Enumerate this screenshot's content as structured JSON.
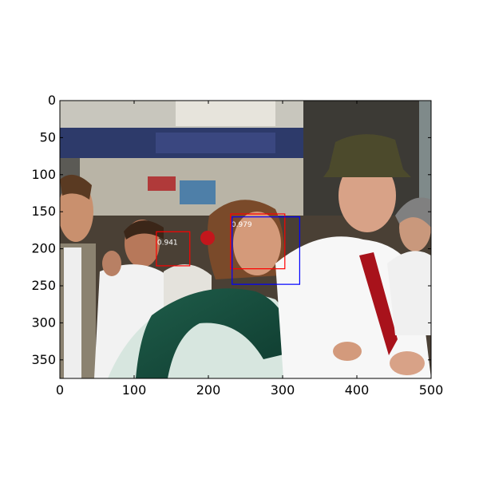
{
  "figure": {
    "description_colors": {
      "background": "#ffffff",
      "axes_frame": "#000000"
    },
    "x_axis": {
      "range": [
        0,
        500
      ],
      "tick_values": [
        0,
        100,
        200,
        300,
        400,
        500
      ],
      "tick_labels": [
        "0",
        "100",
        "200",
        "300",
        "400",
        "500"
      ]
    },
    "y_axis": {
      "range": [
        0,
        375
      ],
      "inverted": true,
      "tick_values": [
        0,
        50,
        100,
        150,
        200,
        250,
        300,
        350
      ],
      "tick_labels": [
        "0",
        "50",
        "100",
        "150",
        "200",
        "250",
        "300",
        "350"
      ]
    },
    "detections": [
      {
        "label": "0.941",
        "color": "#ff0000",
        "x1": 130,
        "y1": 177,
        "x2": 175,
        "y2": 223
      },
      {
        "label": "0.979",
        "color": "#ff0000",
        "x1": 230,
        "y1": 153,
        "x2": 303,
        "y2": 227
      },
      {
        "label": "",
        "color": "#0000ff",
        "x1": 232,
        "y1": 157,
        "x2": 323,
        "y2": 248
      }
    ]
  }
}
